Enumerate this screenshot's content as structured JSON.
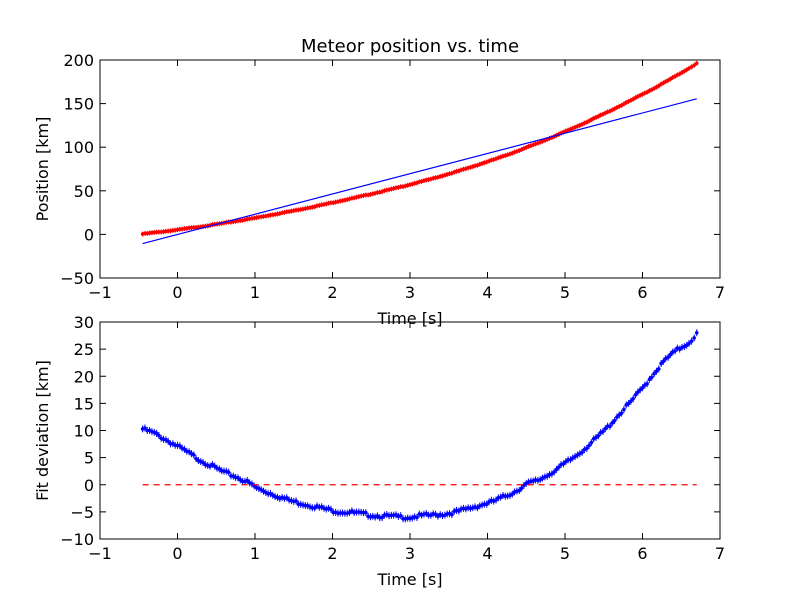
{
  "chart_data": [
    {
      "type": "scatter",
      "title": "Meteor position vs. time",
      "xlabel": "Time [s]",
      "ylabel": "Position [km]",
      "xlim": [
        -1,
        7
      ],
      "ylim": [
        -50,
        200
      ],
      "xticks": [
        -1,
        0,
        1,
        2,
        3,
        4,
        5,
        6,
        7
      ],
      "yticks": [
        -50,
        0,
        50,
        100,
        150,
        200
      ],
      "grid": false,
      "series": [
        {
          "kind": "scatter-errorbar",
          "color": "#ff0000",
          "x": [
            -0.45,
            -0.3,
            -0.15,
            0,
            0.15,
            0.3,
            0.45,
            0.6,
            0.75,
            0.9,
            1.05,
            1.2,
            1.35,
            1.5,
            1.65,
            1.8,
            1.95,
            2.1,
            2.25,
            2.4,
            2.55,
            2.7,
            2.85,
            3,
            3.15,
            3.3,
            3.45,
            3.6,
            3.75,
            3.9,
            4.05,
            4.2,
            4.35,
            4.5,
            4.65,
            4.8,
            4.95,
            5.1,
            5.25,
            5.4,
            5.55,
            5.7,
            5.85,
            6,
            6.15,
            6.3,
            6.45,
            6.6,
            6.7
          ],
          "y": [
            0.5,
            2.1,
            3.6,
            5.3,
            7.1,
            8.9,
            10.9,
            13,
            15.1,
            17.3,
            19.7,
            22.2,
            24.7,
            27.2,
            29.9,
            32.6,
            35.5,
            38.4,
            41.3,
            44.3,
            47.4,
            50.6,
            53.8,
            57.2,
            60.7,
            64.2,
            68.1,
            72,
            76.1,
            80.5,
            84.9,
            89.5,
            94.4,
            99.6,
            104.6,
            110.2,
            115.9,
            121.7,
            127.7,
            134,
            140.3,
            146.9,
            153.7,
            160.7,
            167.6,
            175.1,
            182.6,
            190.6,
            196
          ]
        },
        {
          "kind": "line",
          "color": "#0000ff",
          "x": [
            -0.45,
            6.7
          ],
          "y": [
            -10.5,
            155.5
          ]
        }
      ]
    },
    {
      "type": "scatter",
      "title": "",
      "xlabel": "Time [s]",
      "ylabel": "Fit deviation [km]",
      "xlim": [
        -1,
        7
      ],
      "ylim": [
        -10,
        30
      ],
      "xticks": [
        -1,
        0,
        1,
        2,
        3,
        4,
        5,
        6,
        7
      ],
      "yticks": [
        -10,
        -5,
        0,
        5,
        10,
        15,
        20,
        25,
        30
      ],
      "grid": false,
      "series": [
        {
          "kind": "scatter-errorbar",
          "color": "#0000ff",
          "x": [
            -0.45,
            -0.3,
            -0.15,
            0,
            0.15,
            0.3,
            0.45,
            0.6,
            0.75,
            0.9,
            1.05,
            1.2,
            1.35,
            1.5,
            1.65,
            1.8,
            1.95,
            2.1,
            2.25,
            2.4,
            2.55,
            2.7,
            2.85,
            3,
            3.15,
            3.3,
            3.45,
            3.6,
            3.75,
            3.9,
            4.05,
            4.2,
            4.35,
            4.5,
            4.65,
            4.8,
            4.95,
            5.1,
            5.25,
            5.4,
            5.55,
            5.7,
            5.85,
            6,
            6.15,
            6.3,
            6.45,
            6.6,
            6.7
          ],
          "y": [
            10.3,
            9.5,
            8.3,
            7.1,
            5.8,
            4.5,
            3.4,
            2.3,
            1.5,
            0.5,
            -0.8,
            -1.6,
            -2.4,
            -3.1,
            -3.6,
            -4.1,
            -4.6,
            -5,
            -5.1,
            -5.4,
            -5.7,
            -5.8,
            -5.9,
            -6,
            -5.7,
            -5.6,
            -5.4,
            -5,
            -4.4,
            -3.8,
            -3.2,
            -2.3,
            -1.3,
            0.1,
            0.8,
            2,
            3.4,
            4.9,
            6.6,
            8.5,
            10.6,
            13,
            15.3,
            17.8,
            20.6,
            23.1,
            24.9,
            26.2,
            27.8
          ]
        },
        {
          "kind": "dashed-line",
          "color": "#ff0000",
          "x": [
            -0.45,
            6.7
          ],
          "y": [
            0,
            0
          ]
        }
      ]
    }
  ]
}
